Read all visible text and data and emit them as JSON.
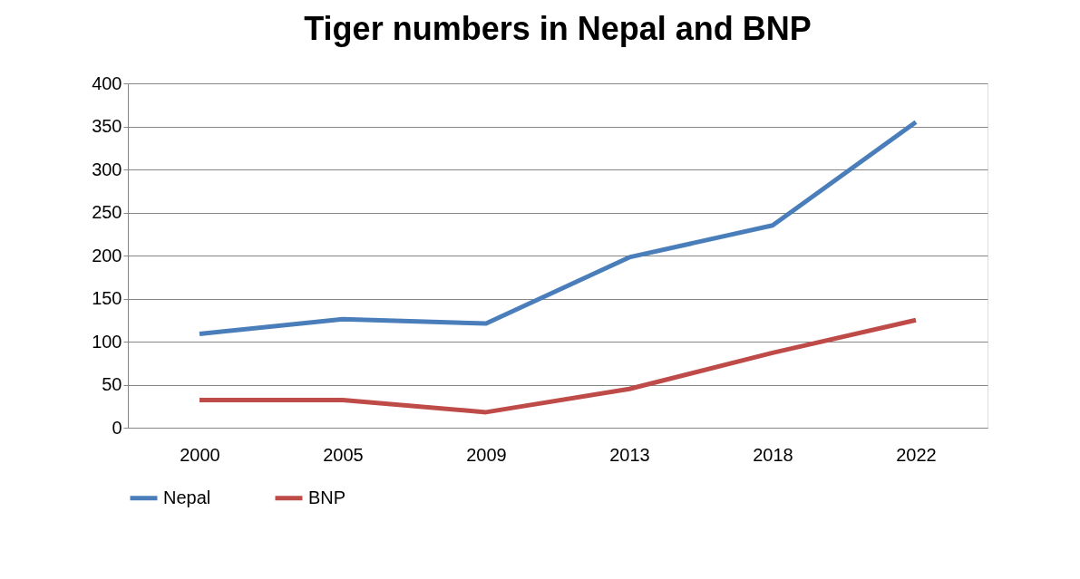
{
  "chart_data": {
    "type": "line",
    "title": "Tiger numbers in Nepal and BNP",
    "categories": [
      "2000",
      "2005",
      "2009",
      "2013",
      "2018",
      "2022"
    ],
    "series": [
      {
        "name": "Nepal",
        "color": "#4a7ebb",
        "values": [
          109,
          126,
          121,
          198,
          235,
          355
        ]
      },
      {
        "name": "BNP",
        "color": "#be4b48",
        "values": [
          32,
          32,
          18,
          45,
          87,
          125
        ]
      }
    ],
    "ylim": [
      0,
      400
    ],
    "yticks": [
      0,
      50,
      100,
      150,
      200,
      250,
      300,
      350,
      400
    ],
    "grid": "y",
    "legend": "bottom",
    "marker": "none",
    "line_style": "solid"
  }
}
